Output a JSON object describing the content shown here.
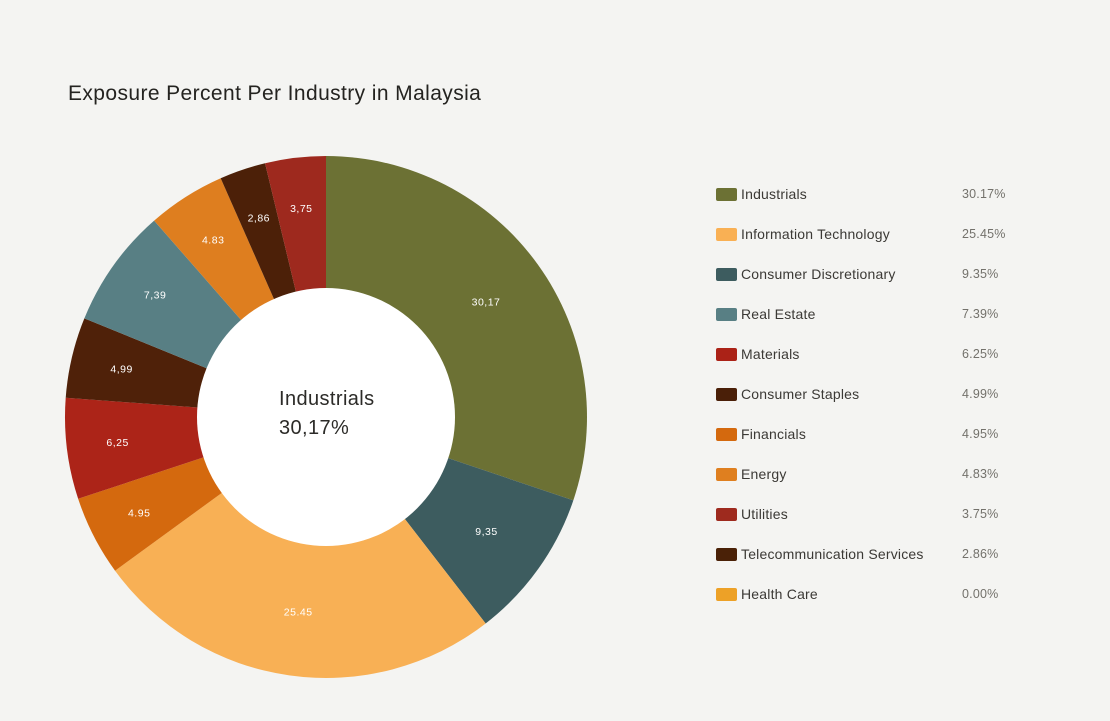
{
  "title": "Exposure Percent Per Industry in Malaysia",
  "chart_data": {
    "type": "pie",
    "subtype": "donut",
    "title": "Exposure Percent Per Industry in Malaysia",
    "start_angle_deg": 0,
    "direction": "clockwise",
    "legend_position": "right",
    "background_color": "#f4f4f2",
    "inner_circle_color": "#ffffff",
    "center_label": {
      "line1": "Industrials",
      "line2": "30,17%"
    },
    "slices": [
      {
        "name": "Industrials",
        "value": 30.17,
        "display": "30,17",
        "color": "#6c7134"
      },
      {
        "name": "Consumer Discretionary",
        "value": 9.35,
        "display": "9,35",
        "color": "#3d5c5f"
      },
      {
        "name": "Information Technology",
        "value": 25.45,
        "display": "25.45",
        "color": "#f8b055"
      },
      {
        "name": "Financials",
        "value": 4.95,
        "display": "4.95",
        "color": "#d4690e"
      },
      {
        "name": "Materials",
        "value": 6.25,
        "display": "6,25",
        "color": "#ac2418"
      },
      {
        "name": "Consumer Staples",
        "value": 4.99,
        "display": "4,99",
        "color": "#4f2109"
      },
      {
        "name": "Real Estate",
        "value": 7.39,
        "display": "7,39",
        "color": "#587f84"
      },
      {
        "name": "Energy",
        "value": 4.83,
        "display": "4.83",
        "color": "#de7e1f"
      },
      {
        "name": "Telecommunication Services",
        "value": 2.86,
        "display": "2,86",
        "color": "#4c2008"
      },
      {
        "name": "Utilities",
        "value": 3.75,
        "display": "3,75",
        "color": "#9e291e"
      },
      {
        "name": "Health Care",
        "value": 0.0,
        "display": "",
        "color": "#eda127"
      }
    ]
  },
  "legend": [
    {
      "label": "Industrials",
      "value": "30.17%",
      "color": "#6c7134"
    },
    {
      "label": "Information Technology",
      "value": "25.45%",
      "color": "#f9b054"
    },
    {
      "label": "Consumer Discretionary",
      "value": "9.35%",
      "color": "#3d5c5f"
    },
    {
      "label": "Real Estate",
      "value": "7.39%",
      "color": "#587f84"
    },
    {
      "label": "Materials",
      "value": "6.25%",
      "color": "#ab2217"
    },
    {
      "label": "Consumer Staples",
      "value": "4.99%",
      "color": "#4a1f08"
    },
    {
      "label": "Financials",
      "value": "4.95%",
      "color": "#d4690e"
    },
    {
      "label": "Energy",
      "value": "4.83%",
      "color": "#df7f1f"
    },
    {
      "label": "Utilities",
      "value": "3.75%",
      "color": "#9e2a1e"
    },
    {
      "label": "Telecommunication Services",
      "value": "2.86%",
      "color": "#4a2107"
    },
    {
      "label": "Health Care",
      "value": "0.00%",
      "color": "#eda127"
    }
  ]
}
